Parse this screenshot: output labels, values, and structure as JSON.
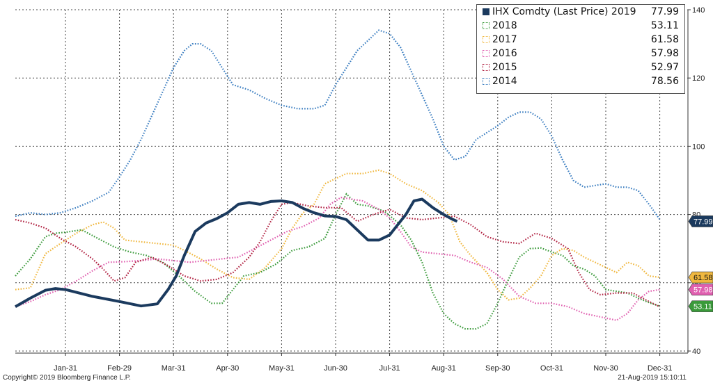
{
  "chart_data": {
    "type": "line",
    "title": "",
    "xlabel": "",
    "ylabel": "",
    "x_ticks": [
      "Jan-31",
      "Feb-29",
      "Mar-31",
      "Apr-30",
      "May-31",
      "Jun-30",
      "Jul-31",
      "Aug-31",
      "Sep-30",
      "Oct-31",
      "Nov-30",
      "Dec-31"
    ],
    "ylim": [
      40,
      140
    ],
    "y_ticks": [
      40,
      60,
      80,
      100,
      120,
      140
    ],
    "grid": true,
    "legend_position": "top-right",
    "series": [
      {
        "name": "IHX Comdty (Last Price) 2019",
        "last_value": "77.99",
        "color": "#1b3a5e",
        "style": "solid",
        "points": [
          [
            0,
            53
          ],
          [
            0.3,
            55.5
          ],
          [
            0.6,
            57.8
          ],
          [
            0.8,
            58.3
          ],
          [
            1,
            58
          ],
          [
            1.5,
            56
          ],
          [
            2,
            54.5
          ],
          [
            2.4,
            53.2
          ],
          [
            2.7,
            53.8
          ],
          [
            2.9,
            58
          ],
          [
            3.05,
            62
          ],
          [
            3.2,
            68
          ],
          [
            3.4,
            75
          ],
          [
            3.6,
            77.5
          ],
          [
            3.8,
            78.8
          ],
          [
            4,
            80.5
          ],
          [
            4.2,
            83
          ],
          [
            4.4,
            83.5
          ],
          [
            4.6,
            83
          ],
          [
            4.8,
            83.8
          ],
          [
            5,
            84
          ],
          [
            5.2,
            83.5
          ],
          [
            5.4,
            81.8
          ],
          [
            5.6,
            80.5
          ],
          [
            5.8,
            79.6
          ],
          [
            6,
            79.4
          ],
          [
            6.2,
            78.5
          ],
          [
            6.4,
            75.5
          ],
          [
            6.6,
            72.5
          ],
          [
            6.8,
            72.5
          ],
          [
            7.0,
            74
          ],
          [
            7.15,
            77
          ],
          [
            7.3,
            80
          ],
          [
            7.45,
            84
          ],
          [
            7.6,
            84.5
          ],
          [
            7.8,
            82
          ],
          [
            8.0,
            80
          ],
          [
            8.15,
            78.7
          ],
          [
            8.25,
            78
          ]
        ]
      },
      {
        "name": "2018",
        "last_value": "53.11",
        "color": "#3a9a3a",
        "style": "dotted",
        "points": [
          [
            0,
            62
          ],
          [
            0.3,
            67
          ],
          [
            0.6,
            73.5
          ],
          [
            0.8,
            74.5
          ],
          [
            1,
            74.8
          ],
          [
            1.3,
            75.5
          ],
          [
            1.6,
            73
          ],
          [
            1.9,
            70.5
          ],
          [
            2.2,
            69
          ],
          [
            2.5,
            68
          ],
          [
            2.8,
            66
          ],
          [
            3.1,
            62
          ],
          [
            3.4,
            57.5
          ],
          [
            3.7,
            54
          ],
          [
            3.9,
            54
          ],
          [
            4.1,
            58
          ],
          [
            4.3,
            62
          ],
          [
            4.6,
            63
          ],
          [
            4.9,
            65.5
          ],
          [
            5.2,
            69.5
          ],
          [
            5.5,
            70.5
          ],
          [
            5.8,
            73
          ],
          [
            6.0,
            80
          ],
          [
            6.2,
            86
          ],
          [
            6.4,
            83
          ],
          [
            6.6,
            82.5
          ],
          [
            6.9,
            81
          ],
          [
            7.2,
            77
          ],
          [
            7.4,
            72.5
          ],
          [
            7.6,
            66
          ],
          [
            7.8,
            57
          ],
          [
            8.0,
            51
          ],
          [
            8.2,
            48
          ],
          [
            8.4,
            46.5
          ],
          [
            8.6,
            46.5
          ],
          [
            8.8,
            48
          ],
          [
            9.0,
            54
          ],
          [
            9.2,
            61
          ],
          [
            9.4,
            67.5
          ],
          [
            9.6,
            70
          ],
          [
            9.8,
            70.2
          ],
          [
            10.0,
            69
          ],
          [
            10.2,
            68
          ],
          [
            10.4,
            65
          ],
          [
            10.6,
            64
          ],
          [
            10.8,
            62
          ],
          [
            11.0,
            58
          ],
          [
            11.2,
            57.5
          ],
          [
            11.4,
            57
          ],
          [
            11.6,
            55.5
          ],
          [
            11.8,
            54.2
          ],
          [
            12.0,
            53.11
          ]
        ]
      },
      {
        "name": "2017",
        "last_value": "61.58",
        "color": "#f0b840",
        "style": "dotted",
        "points": [
          [
            0,
            58
          ],
          [
            0.3,
            58.5
          ],
          [
            0.6,
            68.5
          ],
          [
            0.9,
            71.5
          ],
          [
            1.2,
            74.5
          ],
          [
            1.5,
            77
          ],
          [
            1.7,
            77.8
          ],
          [
            1.9,
            76
          ],
          [
            2.1,
            72.5
          ],
          [
            2.4,
            72
          ],
          [
            2.7,
            71.5
          ],
          [
            3.0,
            71
          ],
          [
            3.2,
            69.5
          ],
          [
            3.5,
            67
          ],
          [
            3.8,
            64
          ],
          [
            4.1,
            61.5
          ],
          [
            4.4,
            61
          ],
          [
            4.7,
            64.5
          ],
          [
            5.0,
            70
          ],
          [
            5.2,
            76
          ],
          [
            5.4,
            80.5
          ],
          [
            5.6,
            83
          ],
          [
            5.8,
            89
          ],
          [
            6.0,
            90.5
          ],
          [
            6.2,
            92
          ],
          [
            6.5,
            92
          ],
          [
            6.8,
            93
          ],
          [
            7.0,
            92
          ],
          [
            7.3,
            89
          ],
          [
            7.6,
            87
          ],
          [
            7.9,
            83.5
          ],
          [
            8.1,
            80
          ],
          [
            8.3,
            72
          ],
          [
            8.5,
            68
          ],
          [
            8.8,
            63
          ],
          [
            9.0,
            58
          ],
          [
            9.2,
            55
          ],
          [
            9.4,
            55.5
          ],
          [
            9.6,
            58.5
          ],
          [
            9.8,
            62
          ],
          [
            10.0,
            68
          ],
          [
            10.2,
            70
          ],
          [
            10.4,
            69.5
          ],
          [
            10.6,
            67.5
          ],
          [
            10.8,
            66
          ],
          [
            11.0,
            64.5
          ],
          [
            11.2,
            63
          ],
          [
            11.4,
            66
          ],
          [
            11.6,
            65
          ],
          [
            11.8,
            62
          ],
          [
            12.0,
            61.58
          ]
        ]
      },
      {
        "name": "2016",
        "last_value": "57.98",
        "color": "#e060b0",
        "style": "dotted",
        "points": [
          [
            0,
            53
          ],
          [
            0.3,
            54.5
          ],
          [
            0.6,
            56.5
          ],
          [
            0.9,
            58
          ],
          [
            1.2,
            60.5
          ],
          [
            1.5,
            63.5
          ],
          [
            1.8,
            66
          ],
          [
            2.1,
            66.2
          ],
          [
            2.4,
            66.5
          ],
          [
            2.7,
            67
          ],
          [
            3.0,
            66.5
          ],
          [
            3.3,
            66
          ],
          [
            3.6,
            66.5
          ],
          [
            3.9,
            67
          ],
          [
            4.2,
            67.5
          ],
          [
            4.5,
            70
          ],
          [
            4.8,
            72.5
          ],
          [
            5.1,
            75
          ],
          [
            5.4,
            76.5
          ],
          [
            5.7,
            79
          ],
          [
            5.9,
            83
          ],
          [
            6.1,
            85
          ],
          [
            6.3,
            84.5
          ],
          [
            6.5,
            84
          ],
          [
            6.8,
            81.5
          ],
          [
            7.0,
            79
          ],
          [
            7.2,
            75
          ],
          [
            7.4,
            70.5
          ],
          [
            7.6,
            69
          ],
          [
            7.9,
            68.5
          ],
          [
            8.2,
            68
          ],
          [
            8.5,
            66
          ],
          [
            8.8,
            64.5
          ],
          [
            9.1,
            61
          ],
          [
            9.4,
            56
          ],
          [
            9.7,
            54
          ],
          [
            10.0,
            54
          ],
          [
            10.3,
            53
          ],
          [
            10.6,
            51
          ],
          [
            10.9,
            50
          ],
          [
            11.2,
            49
          ],
          [
            11.4,
            51
          ],
          [
            11.6,
            55
          ],
          [
            11.8,
            57.5
          ],
          [
            12.0,
            57.98
          ]
        ]
      },
      {
        "name": "2015",
        "last_value": "52.97",
        "color": "#b02040",
        "style": "dotted",
        "points": [
          [
            0,
            78.5
          ],
          [
            0.3,
            77.5
          ],
          [
            0.6,
            76
          ],
          [
            0.9,
            73
          ],
          [
            1.2,
            70.5
          ],
          [
            1.5,
            67
          ],
          [
            1.7,
            64
          ],
          [
            1.9,
            60.5
          ],
          [
            2.1,
            61.5
          ],
          [
            2.3,
            66
          ],
          [
            2.6,
            67.5
          ],
          [
            2.9,
            65
          ],
          [
            3.2,
            62
          ],
          [
            3.5,
            60.5
          ],
          [
            3.8,
            61
          ],
          [
            4.1,
            63
          ],
          [
            4.4,
            67.5
          ],
          [
            4.6,
            72
          ],
          [
            4.8,
            78
          ],
          [
            5.0,
            83
          ],
          [
            5.2,
            83.5
          ],
          [
            5.5,
            82.5
          ],
          [
            5.8,
            82
          ],
          [
            6.1,
            82
          ],
          [
            6.4,
            78
          ],
          [
            6.7,
            80
          ],
          [
            7.0,
            81.5
          ],
          [
            7.3,
            79
          ],
          [
            7.6,
            78.5
          ],
          [
            7.9,
            79
          ],
          [
            8.2,
            79.5
          ],
          [
            8.5,
            77
          ],
          [
            8.8,
            73.5
          ],
          [
            9.1,
            72
          ],
          [
            9.4,
            71.5
          ],
          [
            9.7,
            74.5
          ],
          [
            10.0,
            73
          ],
          [
            10.3,
            70
          ],
          [
            10.5,
            63
          ],
          [
            10.7,
            58
          ],
          [
            10.9,
            56.5
          ],
          [
            11.2,
            57
          ],
          [
            11.5,
            57
          ],
          [
            11.8,
            54.5
          ],
          [
            12.0,
            52.97
          ]
        ]
      },
      {
        "name": "2014",
        "last_value": "78.56",
        "color": "#3a7dc0",
        "style": "dotted",
        "points": [
          [
            0,
            79.5
          ],
          [
            0.3,
            80.5
          ],
          [
            0.6,
            80
          ],
          [
            0.9,
            80.5
          ],
          [
            1.2,
            82
          ],
          [
            1.5,
            84
          ],
          [
            1.8,
            86.5
          ],
          [
            2.0,
            91
          ],
          [
            2.2,
            96
          ],
          [
            2.4,
            102
          ],
          [
            2.6,
            109
          ],
          [
            2.8,
            116
          ],
          [
            3.0,
            123
          ],
          [
            3.2,
            128
          ],
          [
            3.35,
            130
          ],
          [
            3.5,
            130
          ],
          [
            3.7,
            128
          ],
          [
            3.9,
            123
          ],
          [
            4.1,
            118
          ],
          [
            4.4,
            116.5
          ],
          [
            4.7,
            114
          ],
          [
            5.0,
            112
          ],
          [
            5.3,
            111
          ],
          [
            5.6,
            111
          ],
          [
            5.8,
            112
          ],
          [
            6.0,
            118
          ],
          [
            6.2,
            123
          ],
          [
            6.4,
            128
          ],
          [
            6.6,
            131
          ],
          [
            6.8,
            134
          ],
          [
            7.0,
            133
          ],
          [
            7.2,
            129
          ],
          [
            7.4,
            122
          ],
          [
            7.6,
            115
          ],
          [
            7.8,
            108
          ],
          [
            8.0,
            100
          ],
          [
            8.2,
            96
          ],
          [
            8.4,
            97
          ],
          [
            8.6,
            102
          ],
          [
            8.8,
            104
          ],
          [
            9.0,
            106
          ],
          [
            9.2,
            108.5
          ],
          [
            9.4,
            110
          ],
          [
            9.6,
            110
          ],
          [
            9.8,
            108
          ],
          [
            10.0,
            103
          ],
          [
            10.2,
            96
          ],
          [
            10.4,
            90
          ],
          [
            10.6,
            88
          ],
          [
            10.8,
            88.5
          ],
          [
            11.0,
            89
          ],
          [
            11.2,
            88
          ],
          [
            11.4,
            88
          ],
          [
            11.6,
            87
          ],
          [
            11.8,
            83
          ],
          [
            12.0,
            78.56
          ]
        ]
      }
    ]
  },
  "footer": {
    "copyright": "Copyright© 2019 Bloomberg Finance L.P.",
    "timestamp": "21-Aug-2019 15:10:11"
  }
}
